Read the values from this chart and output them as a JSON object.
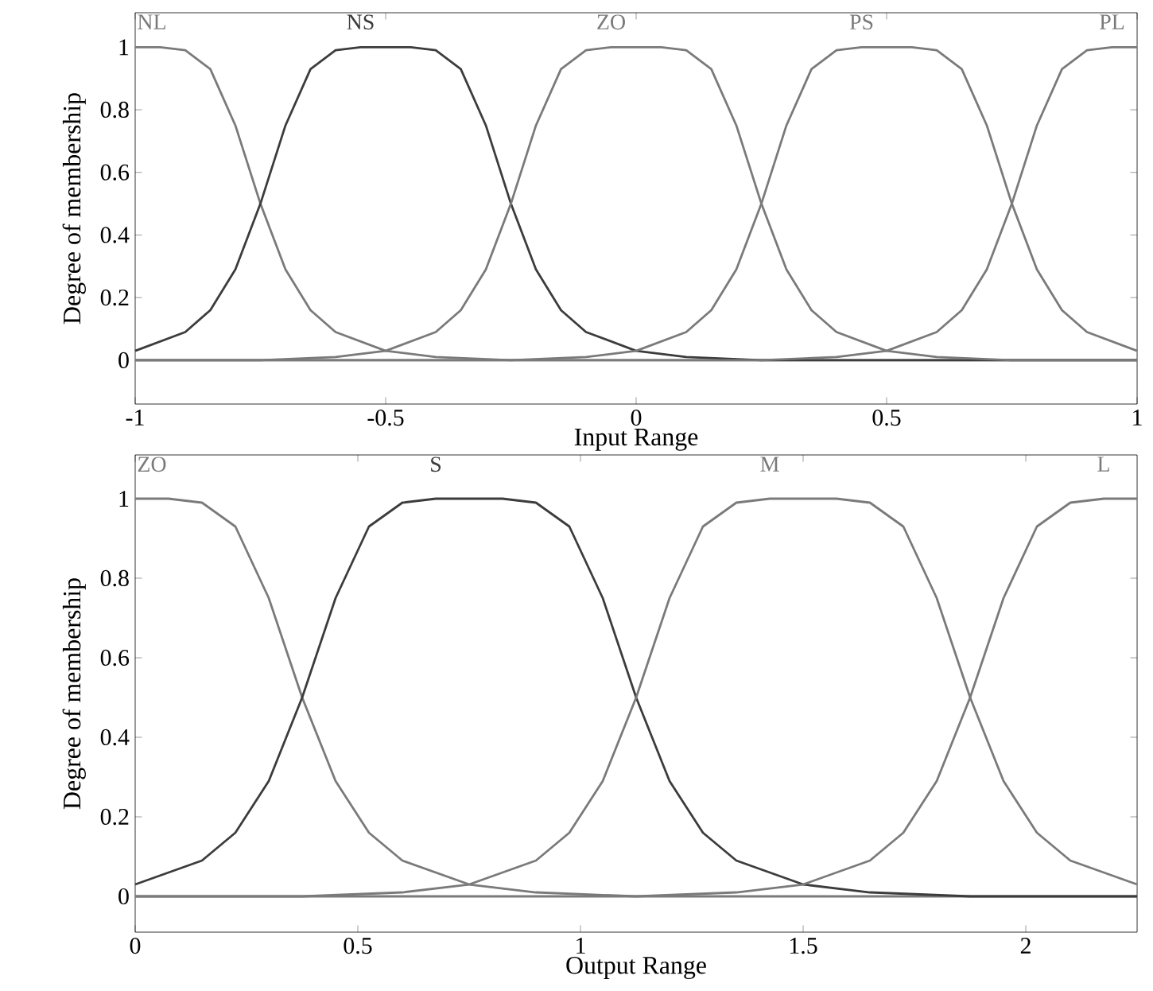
{
  "chart_data": [
    {
      "type": "line",
      "xlabel": "Input Range",
      "ylabel": "Degree of membership",
      "xlim": [
        -1,
        1
      ],
      "ylim": [
        -0.14,
        1.11
      ],
      "xticks": [
        -1,
        -0.5,
        0,
        0.5,
        1
      ],
      "yticks": [
        0,
        0.2,
        0.4,
        0.6,
        0.8,
        1
      ],
      "line_style": "solid",
      "legend": "top",
      "series": [
        {
          "name": "NL",
          "color": "#7a7a7a",
          "x": [
            -1,
            -0.95,
            -0.9,
            -0.85,
            -0.8,
            -0.75,
            -0.7,
            -0.65,
            -0.6,
            -0.5,
            -0.4,
            -0.25,
            0,
            0.5,
            1
          ],
          "values": [
            1,
            1,
            0.99,
            0.93,
            0.75,
            0.5,
            0.29,
            0.16,
            0.09,
            0.03,
            0.01,
            0,
            0,
            0,
            0
          ]
        },
        {
          "name": "NS",
          "color": "#3c3c3c",
          "x": [
            -1,
            -0.9,
            -0.85,
            -0.8,
            -0.75,
            -0.7,
            -0.65,
            -0.6,
            -0.55,
            -0.5,
            -0.45,
            -0.4,
            -0.35,
            -0.3,
            -0.25,
            -0.2,
            -0.15,
            -0.1,
            0,
            0.1,
            0.25,
            0.5,
            1
          ],
          "values": [
            0.03,
            0.09,
            0.16,
            0.29,
            0.5,
            0.75,
            0.93,
            0.99,
            1,
            1,
            1,
            0.99,
            0.93,
            0.75,
            0.5,
            0.29,
            0.16,
            0.09,
            0.03,
            0.01,
            0,
            0,
            0
          ]
        },
        {
          "name": "ZO",
          "color": "#7a7a7a",
          "x": [
            -1,
            -0.75,
            -0.6,
            -0.5,
            -0.4,
            -0.35,
            -0.3,
            -0.25,
            -0.2,
            -0.15,
            -0.1,
            -0.05,
            0,
            0.05,
            0.1,
            0.15,
            0.2,
            0.25,
            0.3,
            0.35,
            0.4,
            0.5,
            0.6,
            0.75,
            1
          ],
          "values": [
            0,
            0,
            0.01,
            0.03,
            0.09,
            0.16,
            0.29,
            0.5,
            0.75,
            0.93,
            0.99,
            1,
            1,
            1,
            0.99,
            0.93,
            0.75,
            0.5,
            0.29,
            0.16,
            0.09,
            0.03,
            0.01,
            0,
            0
          ]
        },
        {
          "name": "PS",
          "color": "#7a7a7a",
          "x": [
            -1,
            -0.5,
            -0.25,
            -0.1,
            0,
            0.1,
            0.15,
            0.2,
            0.25,
            0.3,
            0.35,
            0.4,
            0.45,
            0.5,
            0.55,
            0.6,
            0.65,
            0.7,
            0.75,
            0.8,
            0.85,
            0.9,
            1
          ],
          "values": [
            0,
            0,
            0,
            0.01,
            0.03,
            0.09,
            0.16,
            0.29,
            0.5,
            0.75,
            0.93,
            0.99,
            1,
            1,
            1,
            0.99,
            0.93,
            0.75,
            0.5,
            0.29,
            0.16,
            0.09,
            0.03
          ]
        },
        {
          "name": "PL",
          "color": "#7a7a7a",
          "x": [
            -1,
            -0.5,
            0,
            0.25,
            0.4,
            0.5,
            0.6,
            0.65,
            0.7,
            0.75,
            0.8,
            0.85,
            0.9,
            0.95,
            1
          ],
          "values": [
            0,
            0,
            0,
            0,
            0.01,
            0.03,
            0.09,
            0.16,
            0.29,
            0.5,
            0.75,
            0.93,
            0.99,
            1,
            1
          ]
        }
      ]
    },
    {
      "type": "line",
      "xlabel": "Output Range",
      "ylabel": "Degree of membership",
      "xlim": [
        0,
        2.25
      ],
      "ylim": [
        -0.09,
        1.11
      ],
      "xticks": [
        0,
        0.5,
        1,
        1.5,
        2
      ],
      "yticks": [
        0,
        0.2,
        0.4,
        0.6,
        0.8,
        1
      ],
      "line_style": "solid",
      "legend": "top",
      "series": [
        {
          "name": "ZO",
          "color": "#7a7a7a",
          "x": [
            0,
            0.075,
            0.15,
            0.225,
            0.3,
            0.375,
            0.45,
            0.525,
            0.6,
            0.75,
            0.9,
            1.125,
            1.5,
            2.25
          ],
          "values": [
            1,
            1,
            0.99,
            0.93,
            0.75,
            0.5,
            0.29,
            0.16,
            0.09,
            0.03,
            0.01,
            0,
            0,
            0
          ]
        },
        {
          "name": "S",
          "color": "#3c3c3c",
          "x": [
            0,
            0.15,
            0.225,
            0.3,
            0.375,
            0.45,
            0.525,
            0.6,
            0.675,
            0.75,
            0.825,
            0.9,
            0.975,
            1.05,
            1.125,
            1.2,
            1.275,
            1.35,
            1.5,
            1.65,
            1.875,
            2.25
          ],
          "values": [
            0.03,
            0.09,
            0.16,
            0.29,
            0.5,
            0.75,
            0.93,
            0.99,
            1,
            1,
            1,
            0.99,
            0.93,
            0.75,
            0.5,
            0.29,
            0.16,
            0.09,
            0.03,
            0.01,
            0,
            0
          ]
        },
        {
          "name": "M",
          "color": "#7a7a7a",
          "x": [
            0,
            0.375,
            0.6,
            0.75,
            0.9,
            0.975,
            1.05,
            1.125,
            1.2,
            1.275,
            1.35,
            1.425,
            1.5,
            1.575,
            1.65,
            1.725,
            1.8,
            1.875,
            1.95,
            2.025,
            2.1,
            2.25
          ],
          "values": [
            0,
            0,
            0.01,
            0.03,
            0.09,
            0.16,
            0.29,
            0.5,
            0.75,
            0.93,
            0.99,
            1,
            1,
            1,
            0.99,
            0.93,
            0.75,
            0.5,
            0.29,
            0.16,
            0.09,
            0.03
          ]
        },
        {
          "name": "L",
          "color": "#7a7a7a",
          "x": [
            0,
            0.75,
            1.125,
            1.35,
            1.5,
            1.65,
            1.725,
            1.8,
            1.875,
            1.95,
            2.025,
            2.1,
            2.175,
            2.25
          ],
          "values": [
            0,
            0,
            0,
            0.01,
            0.03,
            0.09,
            0.16,
            0.29,
            0.5,
            0.75,
            0.93,
            0.99,
            1,
            1
          ]
        }
      ]
    }
  ]
}
